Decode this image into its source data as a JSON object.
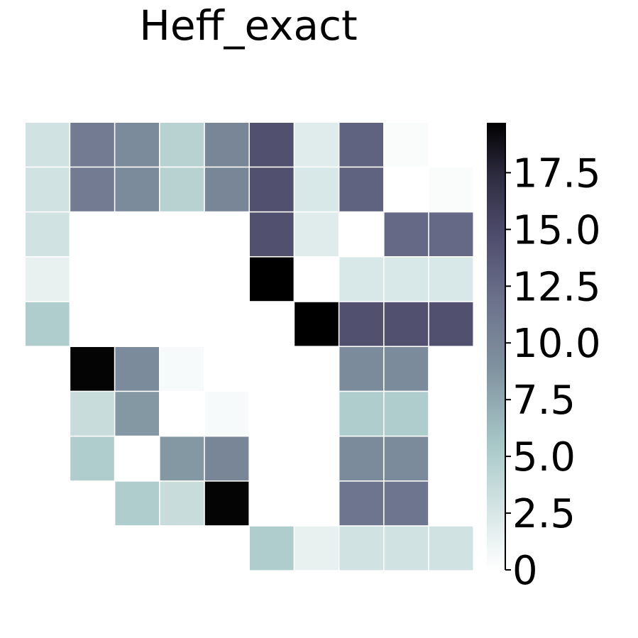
{
  "chart_data": {
    "type": "heatmap",
    "title": "Heff_exact",
    "xlabel": "",
    "ylabel": "",
    "rows": 10,
    "cols": 10,
    "matrix": [
      [
        3.0,
        11.0,
        9.5,
        4.5,
        10.0,
        14.5,
        2.0,
        13.0,
        0.3,
        0.0
      ],
      [
        3.0,
        11.0,
        9.5,
        4.5,
        10.0,
        14.5,
        2.5,
        13.0,
        0.0,
        0.3
      ],
      [
        3.0,
        0.0,
        0.0,
        0.0,
        0.0,
        14.5,
        2.0,
        0.0,
        12.5,
        12.5
      ],
      [
        1.5,
        0.0,
        0.0,
        0.0,
        0.0,
        20.0,
        0.0,
        2.5,
        2.5,
        2.5
      ],
      [
        5.0,
        0.0,
        0.0,
        0.0,
        0.0,
        0.0,
        20.0,
        14.5,
        14.5,
        14.5
      ],
      [
        0.0,
        19.5,
        9.5,
        0.5,
        0.0,
        0.0,
        0.0,
        9.5,
        9.5,
        0.0
      ],
      [
        0.0,
        3.5,
        8.5,
        0.0,
        0.5,
        0.0,
        0.0,
        5.0,
        5.0,
        0.0
      ],
      [
        0.0,
        5.0,
        0.0,
        8.5,
        10.0,
        0.0,
        0.0,
        9.5,
        9.5,
        0.0
      ],
      [
        0.0,
        0.0,
        5.0,
        3.5,
        19.5,
        0.0,
        0.0,
        11.5,
        11.5,
        0.0
      ],
      [
        0.0,
        0.0,
        0.0,
        0.0,
        0.0,
        5.0,
        1.5,
        3.0,
        3.0,
        3.0
      ]
    ],
    "colorbar": {
      "ticks": [
        "0",
        "2.5",
        "5.0",
        "7.5",
        "10.0",
        "12.5",
        "15.0",
        "17.5"
      ],
      "tick_values": [
        0,
        2.5,
        5.0,
        7.5,
        10.0,
        12.5,
        15.0,
        17.5
      ],
      "range": [
        0,
        19.7
      ],
      "colormap": "bone_r"
    },
    "grid": false,
    "legend": "colorbar-right"
  }
}
